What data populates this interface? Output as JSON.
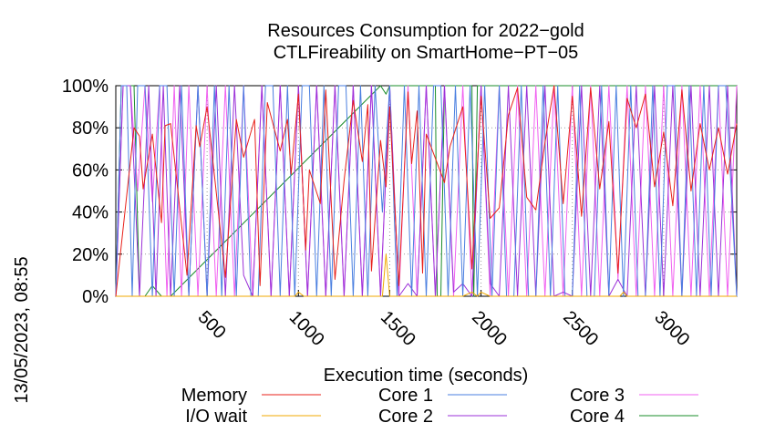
{
  "chart_data": {
    "type": "line",
    "title": "Resources Consumption for 2022−gold",
    "subtitle": "CTLFireability on SmartHome−PT−05",
    "xlabel": "Execution time (seconds)",
    "ylabel": "",
    "side_label": "13/05/2023, 08:55",
    "xlim": [
      0,
      3400
    ],
    "ylim": [
      0,
      100
    ],
    "x_ticks": [
      500,
      1000,
      1500,
      2000,
      2500,
      3000
    ],
    "x_tick_labels": [
      "500",
      "1000",
      "1500",
      "2000",
      "2500",
      "3000"
    ],
    "y_ticks": [
      0,
      20,
      40,
      60,
      80,
      100
    ],
    "y_tick_labels": [
      "0%",
      "20%",
      "40%",
      "60%",
      "80%",
      "100%"
    ],
    "grid": true,
    "legend_position": "bottom",
    "series": [
      {
        "name": "Memory",
        "color": "#e8201a",
        "x": [
          0,
          100,
          130,
          150,
          200,
          250,
          270,
          300,
          390,
          440,
          460,
          500,
          600,
          660,
          700,
          760,
          790,
          830,
          900,
          940,
          960,
          1000,
          1040,
          1060,
          1120,
          1150,
          1200,
          1250,
          1300,
          1350,
          1380,
          1400,
          1450,
          1480,
          1500,
          1550,
          1600,
          1620,
          1650,
          1680,
          1700,
          1800,
          1830,
          1900,
          1950,
          2000,
          2050,
          2100,
          2150,
          2200,
          2250,
          2300,
          2350,
          2400,
          2450,
          2500,
          2550,
          2600,
          2650,
          2700,
          2750,
          2800,
          2850,
          2900,
          2950,
          3000,
          3050,
          3100,
          3150,
          3200,
          3250,
          3300,
          3350,
          3400
        ],
        "y": [
          0,
          80,
          76,
          51,
          77,
          35,
          81,
          82,
          10,
          81,
          71,
          90,
          9,
          84,
          66,
          84,
          5,
          92,
          69,
          84,
          58,
          96,
          22,
          60,
          44,
          98,
          8,
          55,
          93,
          64,
          91,
          12,
          74,
          52,
          90,
          5,
          97,
          63,
          88,
          11,
          77,
          54,
          71,
          90,
          13,
          95,
          37,
          42,
          86,
          99,
          47,
          41,
          73,
          100,
          44,
          95,
          38,
          99,
          51,
          83,
          11,
          94,
          80,
          96,
          52,
          78,
          43,
          98,
          50,
          82,
          60,
          80,
          58,
          82
        ]
      },
      {
        "name": "I/O wait",
        "color": "#f0a800",
        "x": [
          0,
          20,
          300,
          600,
          980,
          1000,
          1030,
          1400,
          1460,
          1480,
          1500,
          1560,
          1900,
          1950,
          1980,
          2000,
          2050,
          2500,
          2760,
          2780,
          2800,
          3400
        ],
        "y": [
          0,
          0,
          0,
          0,
          0,
          2,
          0,
          0,
          0,
          20,
          0,
          0,
          0,
          2,
          0,
          2,
          0,
          0,
          0,
          2,
          0,
          0
        ]
      },
      {
        "name": "Core 1",
        "color": "#4a7fe0",
        "x": [
          0,
          30,
          60,
          90,
          120,
          160,
          200,
          240,
          280,
          320,
          360,
          400,
          450,
          500,
          540,
          580,
          620,
          660,
          700,
          740,
          780,
          820,
          860,
          900,
          940,
          980,
          1020,
          1060,
          1100,
          1140,
          1180,
          1220,
          1260,
          1300,
          1340,
          1380,
          1420,
          1460,
          1500,
          1540,
          1580,
          1620,
          1660,
          1700,
          1740,
          1780,
          1820,
          1860,
          1900,
          1940,
          1980,
          2020,
          2060,
          2100,
          2140,
          2180,
          2220,
          2260,
          2300,
          2340,
          2380,
          2420,
          2460,
          2500,
          2540,
          2580,
          2620,
          2660,
          2700,
          2740,
          2780,
          2820,
          2860,
          2900,
          2940,
          2980,
          3020,
          3060,
          3100,
          3140,
          3180,
          3220,
          3260,
          3300,
          3340,
          3400
        ],
        "y": [
          0,
          100,
          100,
          0,
          100,
          100,
          0,
          100,
          100,
          0,
          100,
          0,
          100,
          0,
          100,
          0,
          100,
          0,
          100,
          0,
          0,
          100,
          100,
          0,
          100,
          0,
          100,
          100,
          0,
          100,
          0,
          100,
          100,
          0,
          100,
          0,
          100,
          40,
          100,
          0,
          100,
          0,
          100,
          0,
          100,
          100,
          0,
          100,
          0,
          100,
          0,
          100,
          0,
          100,
          0,
          0,
          100,
          0,
          0,
          100,
          0,
          100,
          0,
          0,
          100,
          0,
          0,
          100,
          0,
          100,
          0,
          100,
          0,
          0,
          100,
          0,
          100,
          100,
          0,
          100,
          0,
          100,
          0,
          100,
          100,
          0
        ]
      },
      {
        "name": "Core 2",
        "color": "#9b30d8",
        "x": [
          0,
          40,
          80,
          130,
          180,
          220,
          260,
          300,
          350,
          400,
          450,
          500,
          550,
          600,
          650,
          700,
          750,
          800,
          850,
          900,
          950,
          1000,
          1050,
          1100,
          1150,
          1200,
          1250,
          1300,
          1350,
          1400,
          1450,
          1500,
          1550,
          1600,
          1650,
          1700,
          1750,
          1800,
          1850,
          1900,
          1950,
          2000,
          2050,
          2100,
          2150,
          2200,
          2250,
          2300,
          2350,
          2400,
          2450,
          2500,
          2550,
          2600,
          2650,
          2700,
          2750,
          2800,
          2850,
          2900,
          2950,
          3000,
          3050,
          3100,
          3150,
          3200,
          3250,
          3300,
          3350,
          3400
        ],
        "y": [
          0,
          100,
          100,
          0,
          100,
          0,
          100,
          0,
          100,
          0,
          100,
          0,
          100,
          0,
          100,
          10,
          0,
          100,
          0,
          100,
          0,
          100,
          0,
          100,
          0,
          100,
          0,
          100,
          0,
          100,
          0,
          100,
          0,
          6,
          0,
          100,
          0,
          100,
          2,
          6,
          0,
          100,
          6,
          0,
          100,
          0,
          100,
          0,
          100,
          0,
          2,
          0,
          100,
          0,
          100,
          0,
          8,
          0,
          100,
          0,
          100,
          0,
          100,
          0,
          100,
          0,
          100,
          0,
          100,
          0
        ]
      },
      {
        "name": "Core 3",
        "color": "#f060f0",
        "x": [
          0,
          40,
          80,
          120,
          160,
          200,
          240,
          280,
          320,
          360,
          400,
          450,
          500,
          550,
          600,
          650,
          700,
          750,
          800,
          850,
          900,
          950,
          1000,
          1050,
          1100,
          1150,
          1200,
          1250,
          1300,
          1350,
          1400,
          1450,
          1500,
          1550,
          1600,
          1650,
          1700,
          1750,
          1800,
          1850,
          1900,
          1950,
          2000,
          2050,
          2100,
          2150,
          2200,
          2250,
          2300,
          2350,
          2400,
          2450,
          2500,
          2550,
          2600,
          2650,
          2700,
          2750,
          2800,
          2850,
          2900,
          2950,
          3000,
          3050,
          3100,
          3150,
          3200,
          3250,
          3300,
          3350,
          3400
        ],
        "y": [
          0,
          100,
          100,
          50,
          100,
          45,
          100,
          0,
          100,
          0,
          100,
          0,
          100,
          0,
          100,
          0,
          100,
          0,
          100,
          0,
          100,
          0,
          100,
          0,
          100,
          0,
          100,
          0,
          100,
          0,
          100,
          0,
          100,
          0,
          100,
          0,
          100,
          0,
          100,
          0,
          100,
          0,
          100,
          0,
          100,
          0,
          100,
          0,
          100,
          0,
          100,
          0,
          100,
          0,
          100,
          0,
          100,
          8,
          100,
          0,
          100,
          0,
          100,
          0,
          100,
          0,
          100,
          0,
          100,
          0,
          100
        ]
      },
      {
        "name": "Core 4",
        "color": "#1a8c2a",
        "x": [
          0,
          30,
          100,
          130,
          160,
          200,
          250,
          300,
          1450,
          1480,
          1500,
          1520,
          1750,
          1760,
          1780,
          1800,
          1850,
          1900,
          1950,
          1960,
          1980,
          2000,
          2400,
          3400
        ],
        "y": [
          0,
          100,
          100,
          0,
          0,
          5,
          0,
          0,
          100,
          96,
          100,
          100,
          100,
          0,
          0,
          100,
          100,
          100,
          100,
          0,
          100,
          100,
          100,
          100
        ]
      }
    ]
  }
}
